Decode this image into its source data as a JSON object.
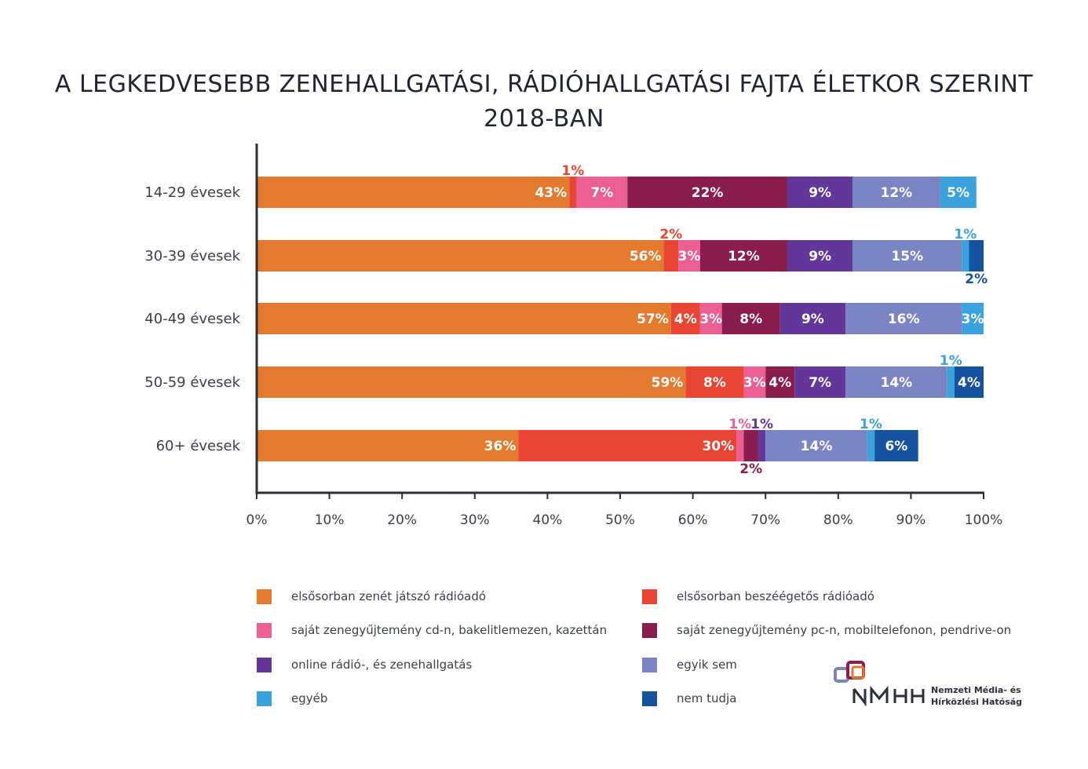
{
  "title": {
    "line1": "A LEGKEDVESEBB ZENEHALLGATÁSI, RÁDIÓHALLGATÁSI FAJTA ÉLETKOR SZERINT",
    "line2": "2018-BAN"
  },
  "logo": {
    "name_line1": "Nemzeti Média- és",
    "name_line2": "Hírközlési Hatóság",
    "mark": "NMHH"
  },
  "chart_data": {
    "type": "bar",
    "orientation": "horizontal",
    "stacked": true,
    "categories": [
      "14-29 évesek",
      "30-39 évesek",
      "40-49 évesek",
      "50-59 évesek",
      "60+ évesek"
    ],
    "xlim": [
      0,
      100
    ],
    "x_ticks": [
      "0%",
      "10%",
      "20%",
      "30%",
      "40%",
      "50%",
      "60%",
      "70%",
      "80%",
      "90%",
      "100%"
    ],
    "legend_position": "bottom",
    "grid": false,
    "series": [
      {
        "name": "elsősorban zenét játszó rádióadó",
        "color": "#e47a2e",
        "values": [
          43,
          56,
          57,
          59,
          36
        ]
      },
      {
        "name": "elsősorban beszéégetős rádióadó",
        "color": "#e84535",
        "values": [
          1,
          2,
          4,
          8,
          30
        ]
      },
      {
        "name": "saját zenegyűjtemény cd-n, bakelitlemezen, kazettán",
        "color": "#ec5f93",
        "values": [
          7,
          3,
          3,
          3,
          1
        ]
      },
      {
        "name": "saját zenegyűjtemény pc-n, mobiltelefonon, pendrive-on",
        "color": "#8a1d4f",
        "values": [
          22,
          12,
          8,
          4,
          2
        ]
      },
      {
        "name": "online rádió-, és zenehallgatás",
        "color": "#63379a",
        "values": [
          9,
          9,
          9,
          7,
          1
        ]
      },
      {
        "name": "egyik sem",
        "color": "#7b85c4",
        "values": [
          12,
          15,
          16,
          14,
          14
        ]
      },
      {
        "name": "egyéb",
        "color": "#3aa2dd",
        "values": [
          5,
          1,
          3,
          1,
          1
        ]
      },
      {
        "name": "nem tudja",
        "color": "#1553a0",
        "values": [
          0,
          2,
          0,
          4,
          6
        ]
      }
    ],
    "data_labels": [
      [
        "43%",
        "1%",
        "7%",
        "22%",
        "9%",
        "12%",
        "5%",
        ""
      ],
      [
        "56%",
        "2%",
        "3%",
        "12%",
        "9%",
        "15%",
        "1%",
        "2%"
      ],
      [
        "57%",
        "4%",
        "3%",
        "8%",
        "9%",
        "16%",
        "3%",
        ""
      ],
      [
        "59%",
        "8%",
        "3%",
        "4%",
        "7%",
        "14%",
        "1%",
        "4%"
      ],
      [
        "36%",
        "30%",
        "1%",
        "2%",
        "1%",
        "14%",
        "1%",
        "6%"
      ]
    ]
  }
}
